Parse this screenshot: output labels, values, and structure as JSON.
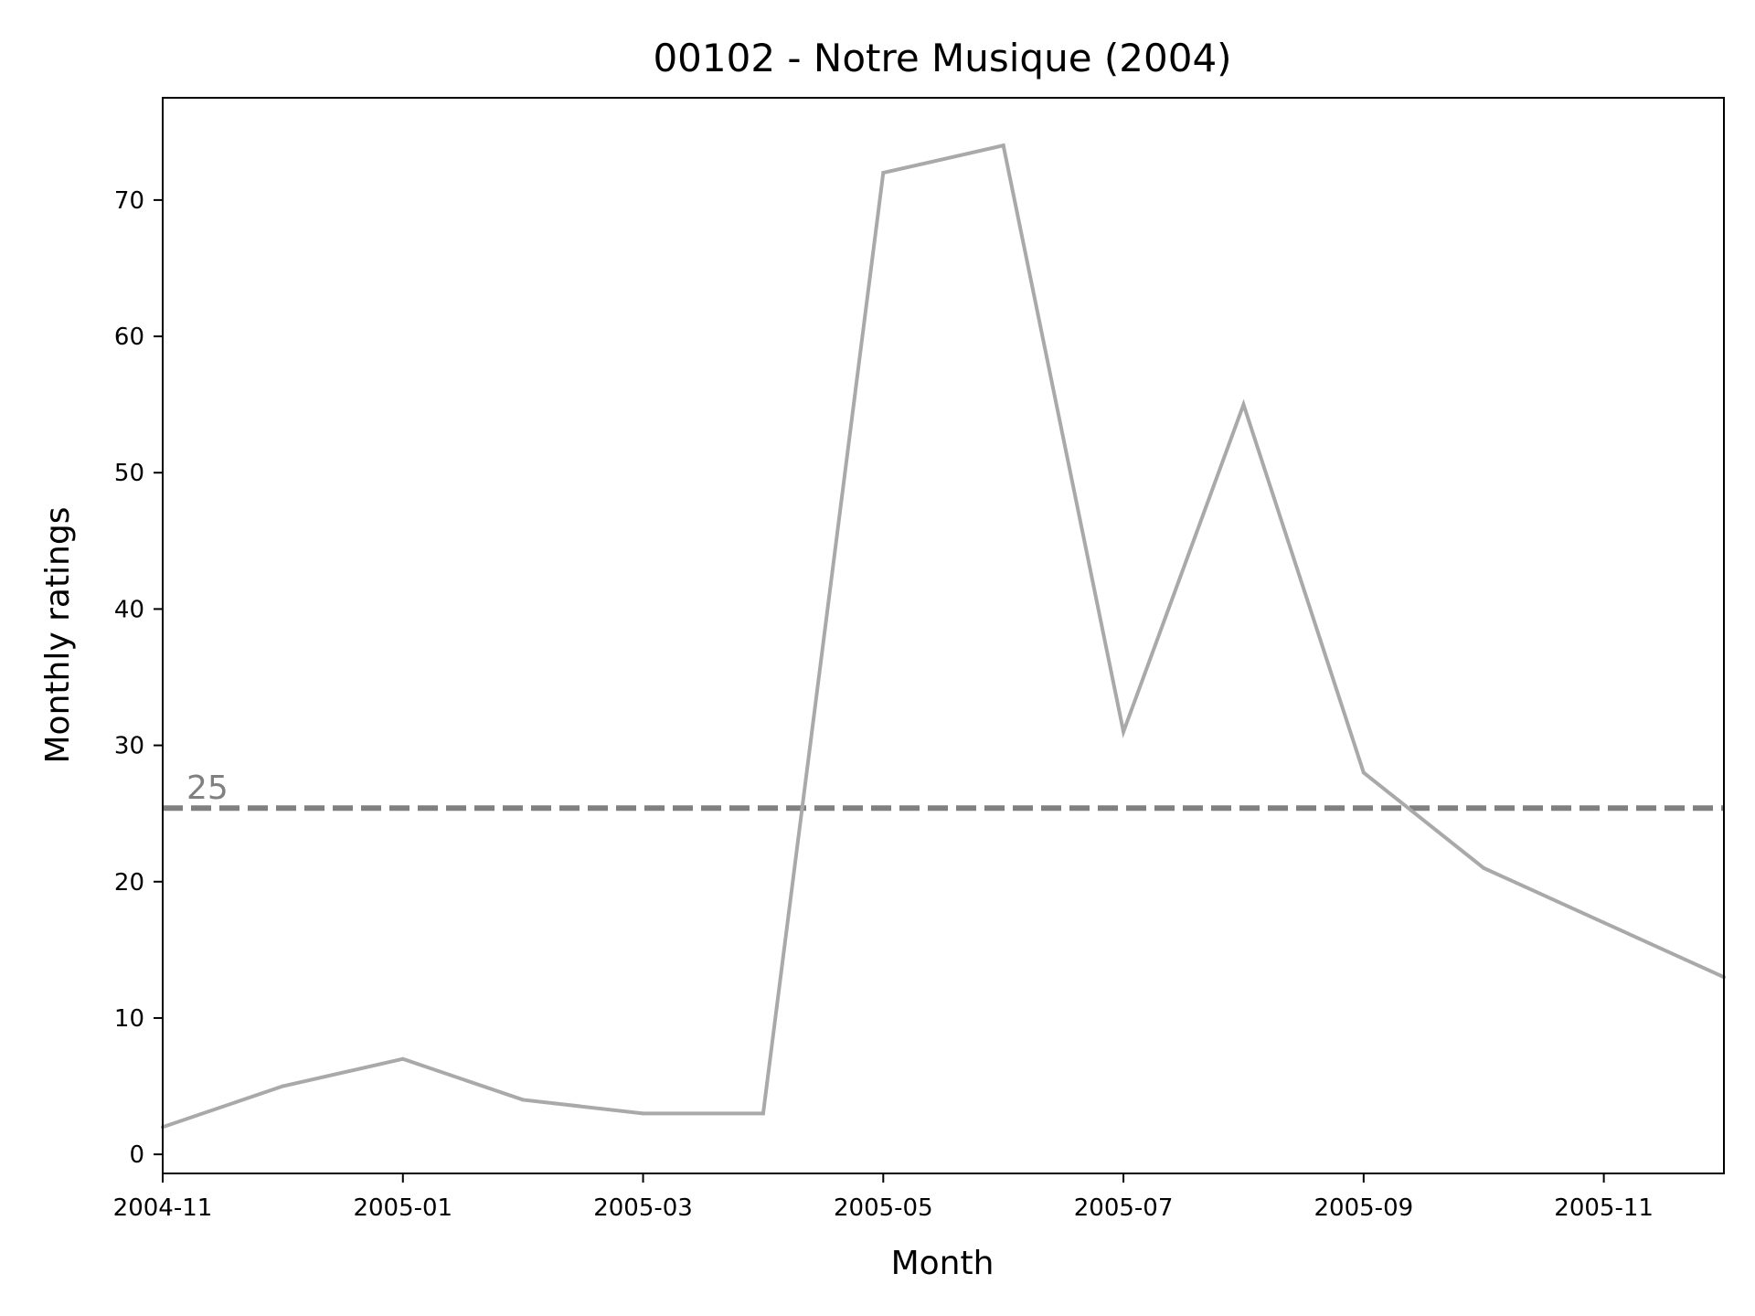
{
  "chart_data": {
    "type": "line",
    "title": "00102 - Notre Musique (2004)",
    "xlabel": "Month",
    "ylabel": "Monthly ratings",
    "x": [
      "2004-11",
      "2004-12",
      "2005-01",
      "2005-02",
      "2005-03",
      "2005-04",
      "2005-05",
      "2005-06",
      "2005-07",
      "2005-08",
      "2005-09",
      "2005-10",
      "2005-11",
      "2005-12"
    ],
    "series": [
      {
        "values": [
          2,
          5,
          7,
          4,
          3,
          3,
          72,
          74,
          31,
          55,
          28,
          21,
          17,
          13
        ],
        "color": "#a9a9a9"
      }
    ],
    "xlim": [
      "2004-11",
      "2005-12"
    ],
    "ylim": [
      -1.4,
      77.5
    ],
    "x_ticks": [
      "2004-11",
      "2005-01",
      "2005-03",
      "2005-05",
      "2005-07",
      "2005-09",
      "2005-11"
    ],
    "y_ticks": [
      0,
      10,
      20,
      30,
      40,
      50,
      60,
      70
    ],
    "reference_line": {
      "value": 25.4,
      "label": "25",
      "style": "dashed",
      "color": "#808080"
    },
    "grid": false,
    "legend": "none"
  }
}
